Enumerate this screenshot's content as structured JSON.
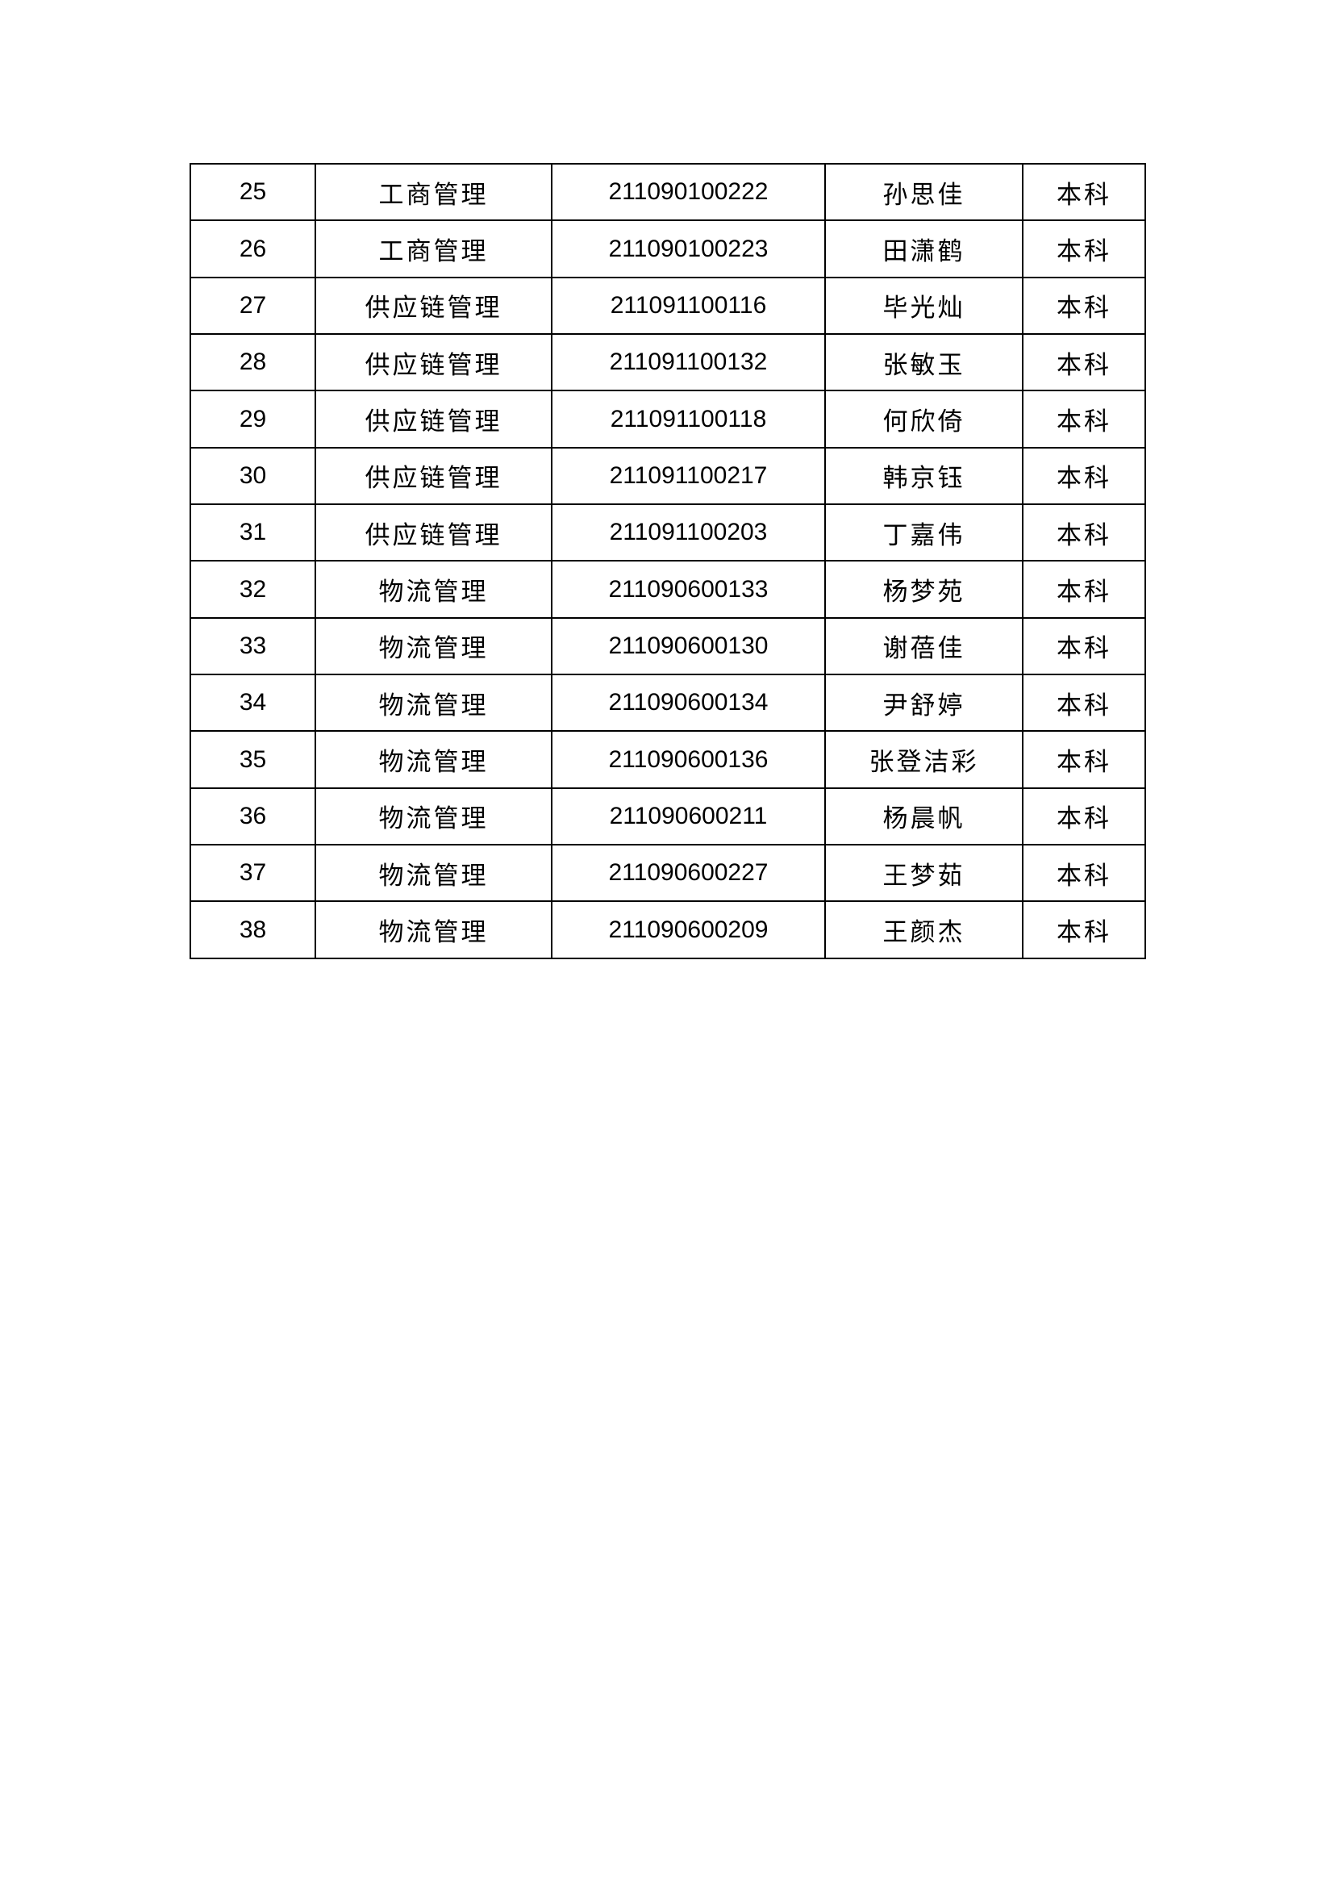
{
  "page": {
    "background_color": "#ffffff",
    "border_color": "#000000",
    "text_color": "#000000"
  },
  "table": {
    "col_keys": [
      "no",
      "major",
      "student_id",
      "name",
      "level"
    ],
    "rows": [
      {
        "no": "25",
        "major": "工商管理",
        "student_id": "211090100222",
        "name": "孙思佳",
        "level": "本科"
      },
      {
        "no": "26",
        "major": "工商管理",
        "student_id": "211090100223",
        "name": "田潇鹤",
        "level": "本科"
      },
      {
        "no": "27",
        "major": "供应链管理",
        "student_id": "211091100116",
        "name": "毕光灿",
        "level": "本科"
      },
      {
        "no": "28",
        "major": "供应链管理",
        "student_id": "211091100132",
        "name": "张敏玉",
        "level": "本科"
      },
      {
        "no": "29",
        "major": "供应链管理",
        "student_id": "211091100118",
        "name": "何欣倚",
        "level": "本科"
      },
      {
        "no": "30",
        "major": "供应链管理",
        "student_id": "211091100217",
        "name": "韩京钰",
        "level": "本科"
      },
      {
        "no": "31",
        "major": "供应链管理",
        "student_id": "211091100203",
        "name": "丁嘉伟",
        "level": "本科"
      },
      {
        "no": "32",
        "major": "物流管理",
        "student_id": "211090600133",
        "name": "杨梦苑",
        "level": "本科"
      },
      {
        "no": "33",
        "major": "物流管理",
        "student_id": "211090600130",
        "name": "谢蓓佳",
        "level": "本科"
      },
      {
        "no": "34",
        "major": "物流管理",
        "student_id": "211090600134",
        "name": "尹舒婷",
        "level": "本科"
      },
      {
        "no": "35",
        "major": "物流管理",
        "student_id": "211090600136",
        "name": "张登洁彩",
        "level": "本科"
      },
      {
        "no": "36",
        "major": "物流管理",
        "student_id": "211090600211",
        "name": "杨晨帆",
        "level": "本科"
      },
      {
        "no": "37",
        "major": "物流管理",
        "student_id": "211090600227",
        "name": "王梦茹",
        "level": "本科"
      },
      {
        "no": "38",
        "major": "物流管理",
        "student_id": "211090600209",
        "name": "王颜杰",
        "level": "本科"
      }
    ]
  }
}
